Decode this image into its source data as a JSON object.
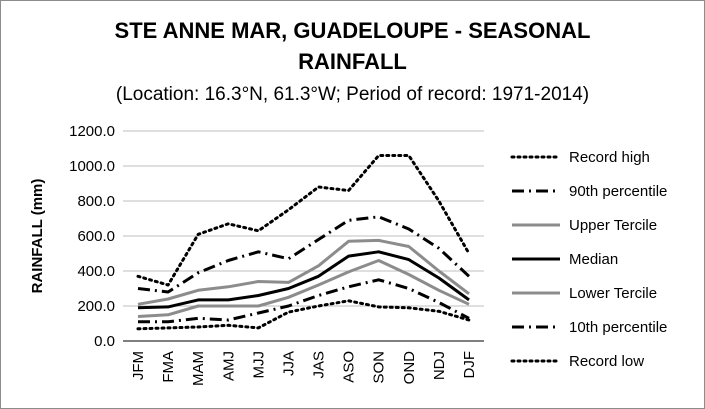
{
  "chart_data": {
    "type": "line",
    "title": "STE ANNE MAR, GUADELOUPE - SEASONAL RAINFALL",
    "title_lines": [
      "STE ANNE MAR, GUADELOUPE - SEASONAL",
      "RAINFALL"
    ],
    "subtitle": "(Location: 16.3°N, 61.3°W; Period of record: 1971-2014)",
    "xlabel": "",
    "ylabel": "RAINFALL (mm)",
    "ylim": [
      0,
      1200
    ],
    "yticks": [
      "0.0",
      "200.0",
      "400.0",
      "600.0",
      "800.0",
      "1000.0",
      "1200.0"
    ],
    "grid": true,
    "legend_position": "right",
    "categories": [
      "JFM",
      "FMA",
      "MAM",
      "AMJ",
      "MJJ",
      "JJA",
      "JAS",
      "ASO",
      "SON",
      "OND",
      "NDJ",
      "DJF"
    ],
    "series": [
      {
        "name": "Record high",
        "color": "#000000",
        "style": "dotted",
        "values": [
          370,
          320,
          610,
          670,
          630,
          750,
          880,
          860,
          1060,
          1060,
          800,
          500
        ]
      },
      {
        "name": "90th percentile",
        "color": "#000000",
        "style": "dashdot",
        "values": [
          300,
          280,
          390,
          460,
          510,
          470,
          580,
          690,
          710,
          640,
          530,
          370
        ]
      },
      {
        "name": "Upper Tercile",
        "color": "#8c8c8c",
        "style": "solid",
        "values": [
          210,
          240,
          290,
          310,
          340,
          335,
          430,
          570,
          575,
          540,
          400,
          270
        ]
      },
      {
        "name": "Median",
        "color": "#000000",
        "style": "solid",
        "values": [
          190,
          195,
          235,
          235,
          260,
          300,
          370,
          485,
          510,
          465,
          360,
          235
        ]
      },
      {
        "name": "Lower Tercile",
        "color": "#8c8c8c",
        "style": "solid",
        "values": [
          140,
          150,
          200,
          200,
          200,
          250,
          320,
          395,
          460,
          380,
          290,
          210
        ]
      },
      {
        "name": "10th percentile",
        "color": "#000000",
        "style": "dashdot",
        "values": [
          110,
          110,
          130,
          120,
          160,
          200,
          260,
          310,
          350,
          300,
          220,
          130
        ]
      },
      {
        "name": "Record low",
        "color": "#000000",
        "style": "dotted",
        "values": [
          70,
          75,
          80,
          90,
          75,
          165,
          200,
          230,
          195,
          190,
          170,
          120
        ]
      }
    ]
  }
}
